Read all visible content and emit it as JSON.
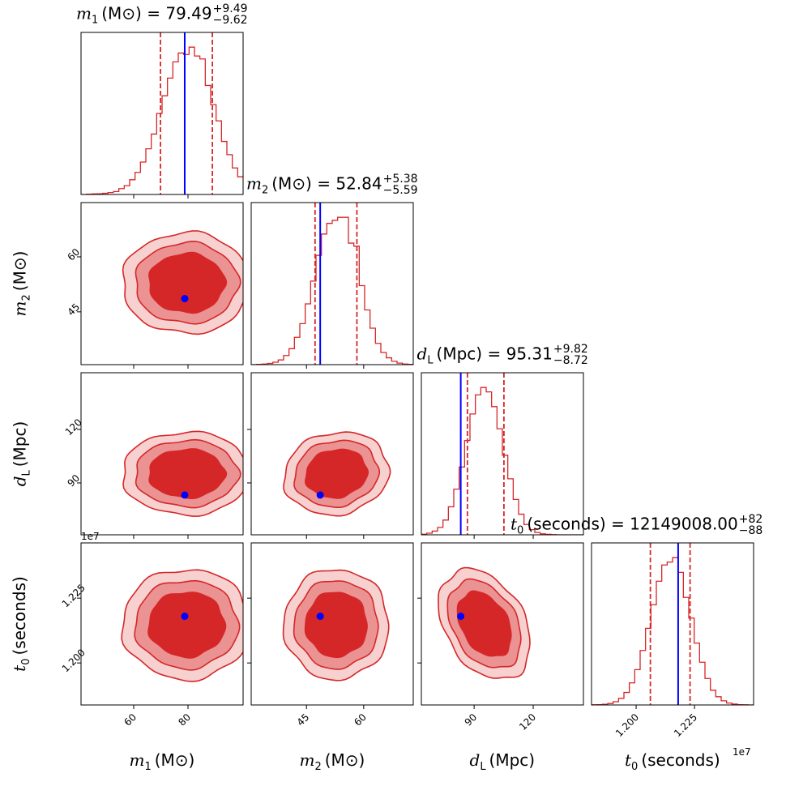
{
  "chart_data": {
    "type": "corner",
    "colors": {
      "posterior": "#d62728",
      "level_dark": "#d62728",
      "level_mid": "#eb9293",
      "level_light": "#f7d0d0",
      "truth": "#0000ff"
    },
    "contour_levels_sigma": [
      1.5,
      2.0,
      2.5
    ],
    "parameters": [
      {
        "symbol": "m",
        "sub": "1",
        "unit": "(M⊙)",
        "title_value": "79.49",
        "err_plus": "+9.49",
        "err_minus": "−9.62",
        "median": 79.49,
        "q_lo": 69.87,
        "q_hi": 88.98,
        "truth": 78.8,
        "sigma": 9.5,
        "xlim": [
          40.6,
          100.3
        ],
        "ylim": null,
        "ticks": [
          60,
          80
        ],
        "tick_labels": [
          "60",
          "80"
        ],
        "hist_range": [
          40.6,
          100.3
        ],
        "hist": [
          0,
          0.002,
          0.004,
          0.005,
          0.008,
          0.013,
          0.02,
          0.04,
          0.06,
          0.1,
          0.15,
          0.22,
          0.31,
          0.41,
          0.55,
          0.67,
          0.79,
          0.9,
          0.96,
          0.95,
          1.0,
          0.94,
          0.92,
          0.74,
          0.61,
          0.5,
          0.36,
          0.27,
          0.18,
          0.12
        ]
      },
      {
        "symbol": "m",
        "sub": "2",
        "unit": "(M⊙)",
        "title_value": "52.84",
        "err_plus": "+5.38",
        "err_minus": "−5.59",
        "median": 52.84,
        "q_lo": 47.25,
        "q_hi": 58.22,
        "truth": 48.6,
        "sigma": 5.5,
        "xlim": [
          30.5,
          73.0
        ],
        "ylim": [
          30.6,
          74.8
        ],
        "ticks": [
          45,
          60
        ],
        "tick_labels": [
          "45",
          "60"
        ],
        "hist_range": [
          30.5,
          73.0
        ],
        "hist": [
          0,
          0.002,
          0.004,
          0.008,
          0.016,
          0.031,
          0.06,
          0.105,
          0.18,
          0.27,
          0.4,
          0.55,
          0.72,
          0.86,
          0.93,
          0.95,
          0.97,
          0.97,
          0.8,
          0.78,
          0.52,
          0.36,
          0.24,
          0.14,
          0.08,
          0.045,
          0.022,
          0.01,
          0.004,
          0.002
        ]
      },
      {
        "symbol": "d",
        "sub": "L",
        "unit": "(Mpc)",
        "title_value": "95.31",
        "err_plus": "+9.82",
        "err_minus": "−8.72",
        "median": 95.31,
        "q_lo": 86.59,
        "q_hi": 105.13,
        "truth": 83.2,
        "sigma": 9.3,
        "xlim": [
          63.2,
          145.5
        ],
        "ylim": [
          60.9,
          151.8
        ],
        "ticks": [
          90,
          120
        ],
        "tick_labels": [
          "90",
          "120"
        ],
        "hist_range": [
          63.2,
          145.5
        ],
        "hist": [
          0.004,
          0.011,
          0.025,
          0.05,
          0.1,
          0.19,
          0.31,
          0.46,
          0.64,
          0.82,
          0.95,
          1.0,
          0.97,
          0.87,
          0.72,
          0.54,
          0.38,
          0.24,
          0.14,
          0.07,
          0.035,
          0.016,
          0.007,
          0.003,
          0.001,
          0,
          0,
          0,
          0,
          0
        ]
      },
      {
        "symbol": "t",
        "sub": "0",
        "unit": "(seconds)",
        "title_value": "12149008.00",
        "err_plus": "+82",
        "err_minus": "−88",
        "median": 1.2149,
        "q_lo": 1.2061,
        "q_hi": 1.2231,
        "truth": 1.218,
        "sigma": 0.0085,
        "axis_scale_label": "1e7",
        "xlim": [
          1.1809,
          1.2503
        ],
        "ylim": [
          1.1838,
          1.2463
        ],
        "ticks": [
          1.2,
          1.225
        ],
        "tick_labels": [
          "1.200",
          "1.225"
        ],
        "hist_range": [
          1.1809,
          1.2503
        ],
        "hist": [
          0.001,
          0.002,
          0.005,
          0.01,
          0.022,
          0.045,
          0.085,
          0.15,
          0.24,
          0.37,
          0.52,
          0.68,
          0.84,
          0.95,
          0.97,
          1.0,
          0.9,
          0.73,
          0.59,
          0.42,
          0.29,
          0.18,
          0.1,
          0.056,
          0.028,
          0.013,
          0.006,
          0.002,
          0.001,
          0
        ]
      }
    ],
    "correlations": [
      [
        1,
        0,
        0,
        0
      ],
      [
        0,
        1,
        0.1,
        0
      ],
      [
        0,
        0.1,
        1,
        -0.35
      ],
      [
        0,
        0,
        -0.35,
        1
      ]
    ]
  }
}
